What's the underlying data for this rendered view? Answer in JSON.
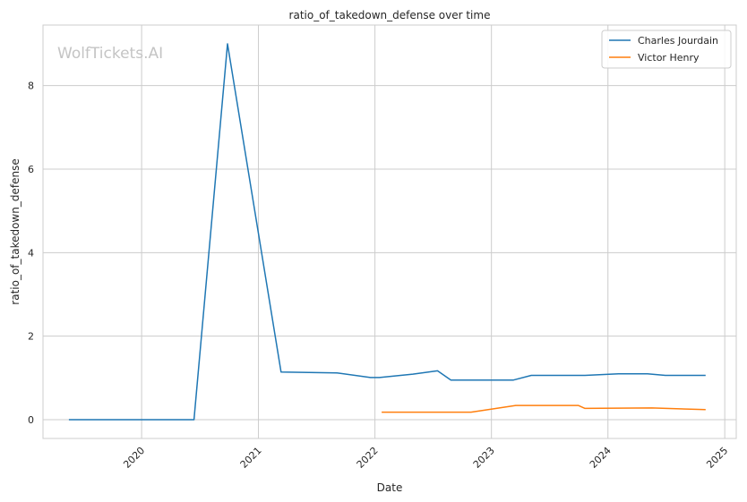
{
  "chart_data": {
    "type": "line",
    "title": "ratio_of_takedown_defense over time",
    "xlabel": "Date",
    "ylabel": "ratio_of_takedown_defense",
    "watermark": "WolfTickets.AI",
    "grid": true,
    "legend_position": "top-right",
    "x_ticks": [
      "2020",
      "2021",
      "2022",
      "2023",
      "2024",
      "2025"
    ],
    "y_ticks": [
      "0",
      "2",
      "4",
      "6",
      "8"
    ],
    "xlim": [
      "2019-02-26",
      "2025-02-06"
    ],
    "ylim": [
      -0.45,
      9.45
    ],
    "series": [
      {
        "name": "Charles Jourdain",
        "color": "#1f77b4",
        "x": [
          "2019-05-18",
          "2020-06-13",
          "2020-09-26",
          "2021-03-13",
          "2021-09-04",
          "2021-12-18",
          "2022-01-15",
          "2022-04-30",
          "2022-07-16",
          "2022-08-27",
          "2023-03-11",
          "2023-05-06",
          "2023-10-21",
          "2024-02-03",
          "2024-05-04",
          "2024-06-29",
          "2024-11-02"
        ],
        "values": [
          0,
          0,
          9.0,
          1.14,
          1.12,
          1.01,
          1.01,
          1.09,
          1.17,
          0.95,
          0.95,
          1.06,
          1.06,
          1.1,
          1.1,
          1.06,
          1.06
        ]
      },
      {
        "name": "Victor Henry",
        "color": "#ff7f0e",
        "x": [
          "2022-01-22",
          "2022-10-29",
          "2023-03-18",
          "2023-09-30",
          "2023-10-21",
          "2024-05-18",
          "2024-11-02"
        ],
        "values": [
          0.18,
          0.18,
          0.34,
          0.34,
          0.27,
          0.28,
          0.24
        ]
      }
    ]
  }
}
